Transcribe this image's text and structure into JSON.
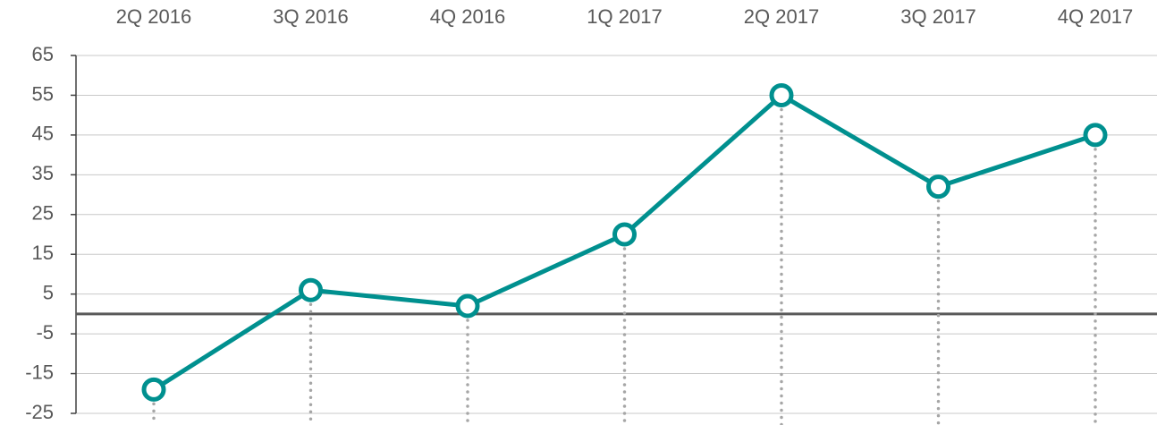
{
  "chart_data": {
    "type": "line",
    "categories": [
      "2Q 2016",
      "3Q 2016",
      "4Q 2016",
      "1Q 2017",
      "2Q 2017",
      "3Q 2017",
      "4Q 2017"
    ],
    "series": [
      {
        "color": "#00908f",
        "values": [
          -19,
          6,
          2,
          20,
          55,
          32,
          45
        ]
      }
    ],
    "ylim": [
      -25,
      65
    ],
    "yticks": [
      -25,
      -15,
      -5,
      5,
      15,
      25,
      35,
      45,
      55,
      65
    ],
    "grid": true,
    "drop_lines": true
  }
}
